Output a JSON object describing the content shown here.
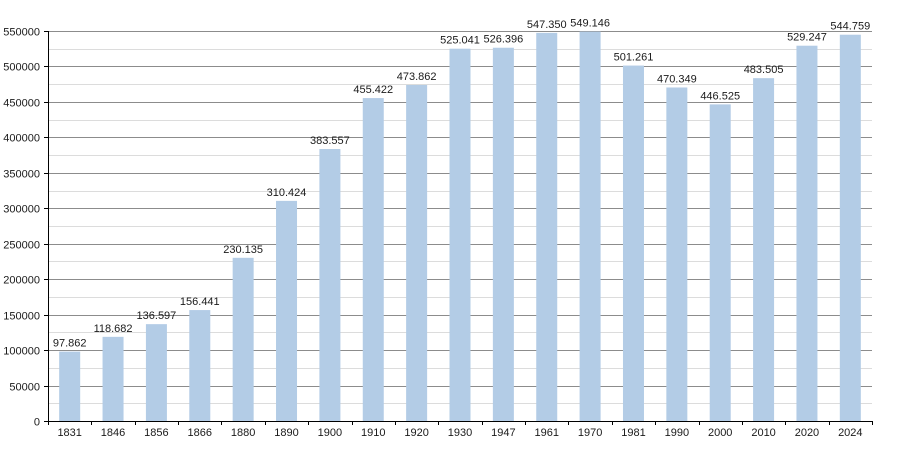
{
  "chart_data": {
    "type": "bar",
    "title": "",
    "xlabel": "",
    "ylabel": "",
    "categories": [
      "1831",
      "1846",
      "1856",
      "1866",
      "1880",
      "1890",
      "1900",
      "1910",
      "1920",
      "1930",
      "1947",
      "1961",
      "1970",
      "1981",
      "1990",
      "2000",
      "2010",
      "2020",
      "2024"
    ],
    "values": [
      97862,
      118682,
      136597,
      156441,
      230135,
      310424,
      383557,
      455422,
      473862,
      525041,
      526396,
      547350,
      549146,
      501261,
      470349,
      446525,
      483505,
      529247,
      544759
    ],
    "data_labels": [
      "97.862",
      "118.682",
      "136.597",
      "156.441",
      "230.135",
      "310.424",
      "383.557",
      "455.422",
      "473.862",
      "525.041",
      "526.396",
      "547.350",
      "549.146",
      "501.261",
      "470.349",
      "446.525",
      "483.505",
      "529.247",
      "544.759"
    ],
    "ylim": [
      0,
      550000
    ],
    "yticks": [
      0,
      50000,
      100000,
      150000,
      200000,
      250000,
      300000,
      350000,
      400000,
      450000,
      500000,
      550000
    ],
    "ytick_labels": [
      "0",
      "50000",
      "100000",
      "150000",
      "200000",
      "250000",
      "300000",
      "350000",
      "400000",
      "450000",
      "500000",
      "550000"
    ],
    "grid": true,
    "legend": "none",
    "colors": {
      "bar": "#b3cce6",
      "grid_major": "#8c8c8c",
      "grid_minor": "#dcdcdc",
      "axis": "#000000"
    }
  }
}
